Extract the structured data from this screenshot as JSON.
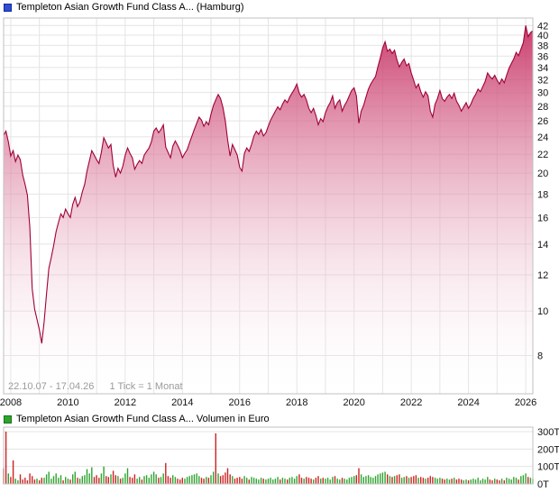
{
  "header": {
    "title": "Templeton Asian Growth Fund Class A... (Hamburg)",
    "icon_color": "#2d4fd2"
  },
  "volume_header": {
    "title": "Templeton Asian Growth Fund Class A... Volumen in Euro",
    "icon_color": "#2fa32f"
  },
  "footer_info": {
    "range": "22.10.07 - 17.04.26",
    "tick": "1 Tick = 1 Monat"
  },
  "chart_data": [
    {
      "type": "area",
      "title": "Templeton Asian Growth Fund Class A... (Hamburg)",
      "x_start": "2007-10",
      "x_end": "2026-04",
      "tick_interval": "1 Monat",
      "y_scale": "log",
      "y_ticks": [
        8,
        10,
        12,
        14,
        16,
        18,
        20,
        22,
        24,
        26,
        28,
        30,
        32,
        34,
        36,
        38,
        40,
        42
      ],
      "y_range": [
        6.6,
        43.6
      ],
      "x_tick_years": [
        2008,
        2010,
        2012,
        2014,
        2016,
        2018,
        2020,
        2022,
        2024,
        2026
      ],
      "grid_on": true,
      "legend_position": "top-left",
      "line_color": "#a00038",
      "fill_top": "#c73263",
      "fill_bottom": "#ffffff",
      "values": [
        24.2,
        24.7,
        23.4,
        21.8,
        22.4,
        21.2,
        21.9,
        21.4,
        19.8,
        18.9,
        17.9,
        15.2,
        11.2,
        10.1,
        9.6,
        9.1,
        8.5,
        9.5,
        10.9,
        12.4,
        13.1,
        13.9,
        14.9,
        15.6,
        16.3,
        16.0,
        16.7,
        16.3,
        16.0,
        17.1,
        17.7,
        16.9,
        17.3,
        18.2,
        18.9,
        20.2,
        21.3,
        22.4,
        21.9,
        21.4,
        21.0,
        22.2,
        23.9,
        23.3,
        22.7,
        23.1,
        20.8,
        19.6,
        20.5,
        20.0,
        20.7,
        21.9,
        22.7,
        22.1,
        21.6,
        20.4,
        20.9,
        21.3,
        21.0,
        21.9,
        22.3,
        22.7,
        23.4,
        24.7,
        25.1,
        24.5,
        24.9,
        25.5,
        22.8,
        22.2,
        21.6,
        22.9,
        23.5,
        23.0,
        22.4,
        21.6,
        22.1,
        22.5,
        23.3,
        24.1,
        24.9,
        25.7,
        26.5,
        26.1,
        25.3,
        25.9,
        25.5,
        26.9,
        28.1,
        28.9,
        29.7,
        29.1,
        27.8,
        26.0,
        23.6,
        21.8,
        23.1,
        22.5,
        21.9,
        20.6,
        20.2,
        22.1,
        22.7,
        22.3,
        23.1,
        24.1,
        24.7,
        24.3,
        24.9,
        24.1,
        24.5,
        25.3,
        26.1,
        26.7,
        27.3,
        27.9,
        27.5,
        28.3,
        28.9,
        28.5,
        29.3,
        29.9,
        30.5,
        31.3,
        29.9,
        29.3,
        29.7,
        28.9,
        27.7,
        27.1,
        27.7,
        26.7,
        25.5,
        26.3,
        25.9,
        27.1,
        27.9,
        28.5,
        29.5,
        27.7,
        28.5,
        28.9,
        27.3,
        28.1,
        28.7,
        29.5,
        30.3,
        30.7,
        29.5,
        25.7,
        27.3,
        28.1,
        29.3,
        30.5,
        31.3,
        31.9,
        32.5,
        34.1,
        35.7,
        37.5,
        38.7,
        36.9,
        37.3,
        36.5,
        37.1,
        35.3,
        34.1,
        34.9,
        35.5,
        34.3,
        34.7,
        33.1,
        31.9,
        30.7,
        31.3,
        30.1,
        29.3,
        30.1,
        29.5,
        27.3,
        26.5,
        28.3,
        29.1,
        30.3,
        29.1,
        28.7,
        29.3,
        29.7,
        29.1,
        29.9,
        28.7,
        28.1,
        27.3,
        27.9,
        28.5,
        27.7,
        28.3,
        29.1,
        29.7,
        30.5,
        30.1,
        30.9,
        31.7,
        33.1,
        32.5,
        32.1,
        32.7,
        31.9,
        31.3,
        32.1,
        31.5,
        32.7,
        33.9,
        34.7,
        35.5,
        36.7,
        36.1,
        37.3,
        38.5,
        42.0,
        39.7,
        40.5,
        40.9
      ]
    },
    {
      "type": "bar",
      "title": "Templeton Asian Growth Fund Class A... Volumen in Euro",
      "unit": "T",
      "y_ticks": [
        0,
        100,
        200,
        300
      ],
      "y_tick_labels": [
        "0T",
        "100T",
        "200T",
        "300T"
      ],
      "y_max": 300,
      "up_color": "#2fa32f",
      "down_color": "#cc2222",
      "note": "negative value = red (down) bar, magnitude in thousands of Euro",
      "values": [
        -90,
        -300,
        60,
        -40,
        -135,
        30,
        20,
        -55,
        -25,
        -35,
        -20,
        -60,
        -45,
        -25,
        30,
        -20,
        -35,
        35,
        55,
        70,
        30,
        45,
        60,
        35,
        50,
        -20,
        40,
        30,
        -25,
        55,
        70,
        -35,
        30,
        45,
        50,
        85,
        60,
        95,
        -40,
        -50,
        -35,
        60,
        100,
        -45,
        -40,
        55,
        -75,
        -50,
        45,
        -30,
        35,
        60,
        90,
        -40,
        -35,
        -55,
        30,
        40,
        -25,
        45,
        50,
        35,
        55,
        70,
        55,
        -35,
        40,
        60,
        -120,
        -45,
        -35,
        50,
        40,
        -30,
        -25,
        -35,
        30,
        40,
        45,
        50,
        55,
        60,
        45,
        -35,
        -30,
        40,
        -35,
        50,
        70,
        -290,
        60,
        -45,
        -50,
        -65,
        -90,
        -55,
        45,
        -30,
        -35,
        -40,
        -30,
        45,
        35,
        -25,
        40,
        35,
        30,
        25,
        35,
        -30,
        25,
        30,
        35,
        25,
        30,
        40,
        -25,
        35,
        30,
        -25,
        35,
        40,
        30,
        45,
        -55,
        -35,
        30,
        -40,
        -35,
        -30,
        25,
        -35,
        -45,
        30,
        -35,
        30,
        35,
        25,
        40,
        -45,
        30,
        25,
        -35,
        30,
        25,
        35,
        40,
        45,
        -50,
        -90,
        55,
        40,
        45,
        50,
        40,
        35,
        45,
        55,
        60,
        65,
        70,
        -55,
        45,
        -40,
        45,
        -50,
        -55,
        35,
        40,
        -45,
        35,
        -40,
        -45,
        -50,
        35,
        -40,
        -35,
        30,
        -35,
        -45,
        -40,
        35,
        30,
        35,
        -30,
        -25,
        30,
        25,
        -30,
        35,
        -25,
        -30,
        -25,
        20,
        25,
        -20,
        25,
        30,
        25,
        35,
        20,
        30,
        25,
        40,
        -25,
        -20,
        30,
        -25,
        -20,
        30,
        -20,
        35,
        30,
        25,
        40,
        35,
        -25,
        45,
        50,
        60,
        -40,
        35,
        30
      ]
    }
  ]
}
